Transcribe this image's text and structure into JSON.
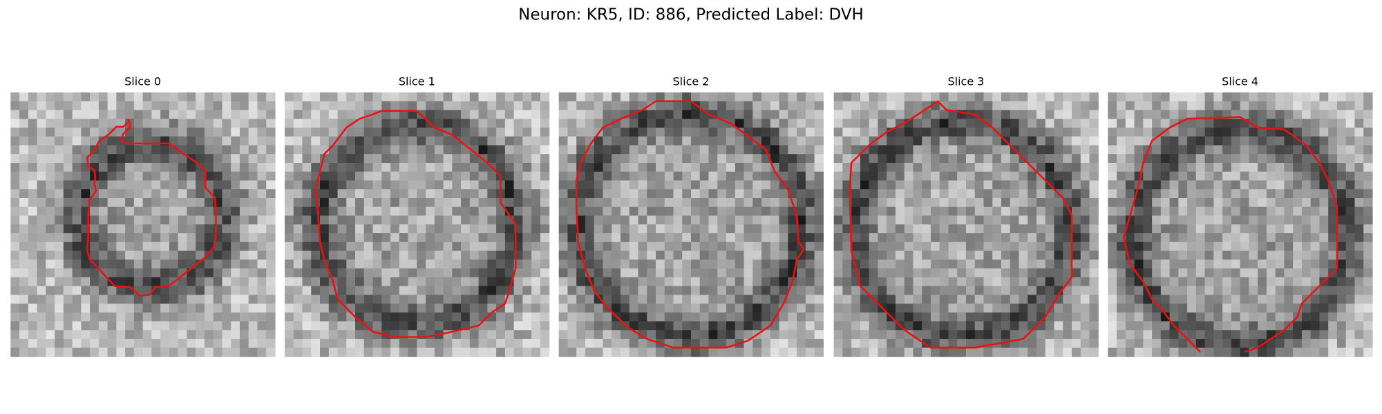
{
  "figure": {
    "title": "Neuron: KR5, ID: 886, Predicted Label: DVH",
    "panels": [
      {
        "title": "Slice 0"
      },
      {
        "title": "Slice 1"
      },
      {
        "title": "Slice 2"
      },
      {
        "title": "Slice 3"
      },
      {
        "title": "Slice 4"
      }
    ]
  }
}
